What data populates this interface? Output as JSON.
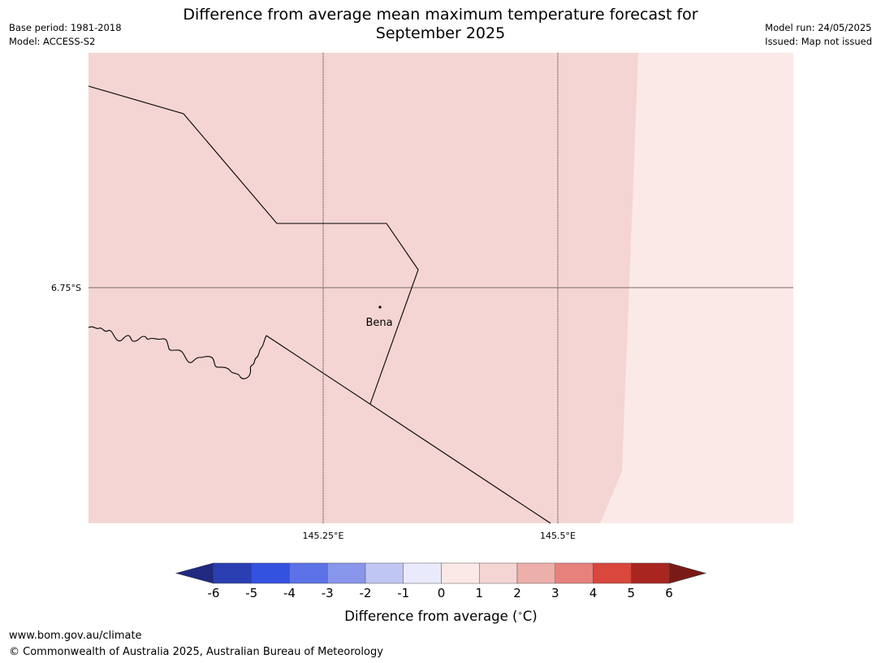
{
  "header": {
    "title_line1": "Difference from average mean maximum temperature forecast for",
    "title_line2": "September 2025",
    "base_period": "Base period: 1981-2018",
    "model": "Model: ACCESS-S2",
    "model_run": "Model run: 24/05/2025",
    "issued": "Issued: Map not issued"
  },
  "map": {
    "lat_label": "6.75°S",
    "lon_labels": [
      "145.25°E",
      "145.5°E"
    ],
    "town": "Bena",
    "colors": {
      "band_1_2": "#f4d5d3",
      "band_0_1": "#fbe9e7",
      "gridline": "#000000",
      "boundary": "#000000"
    }
  },
  "colorbar": {
    "ticks": [
      "-6",
      "-5",
      "-4",
      "-3",
      "-2",
      "-1",
      "0",
      "1",
      "2",
      "3",
      "4",
      "5",
      "6"
    ],
    "colors": [
      "#1f2a80",
      "#2a3eb2",
      "#3352df",
      "#5c72e6",
      "#8896ec",
      "#c0c6f4",
      "#e9ebfc",
      "#fbe9e7",
      "#f4d5d3",
      "#edafaa",
      "#e6817c",
      "#d9473d",
      "#a8261f",
      "#7a1a16"
    ],
    "label": "Difference from average (",
    "label_unit": "C)",
    "label_degree": "∘"
  },
  "footer": {
    "url": "www.bom.gov.au/climate",
    "copyright": "© Commonwealth of Australia 2025, Australian Bureau of Meteorology"
  }
}
